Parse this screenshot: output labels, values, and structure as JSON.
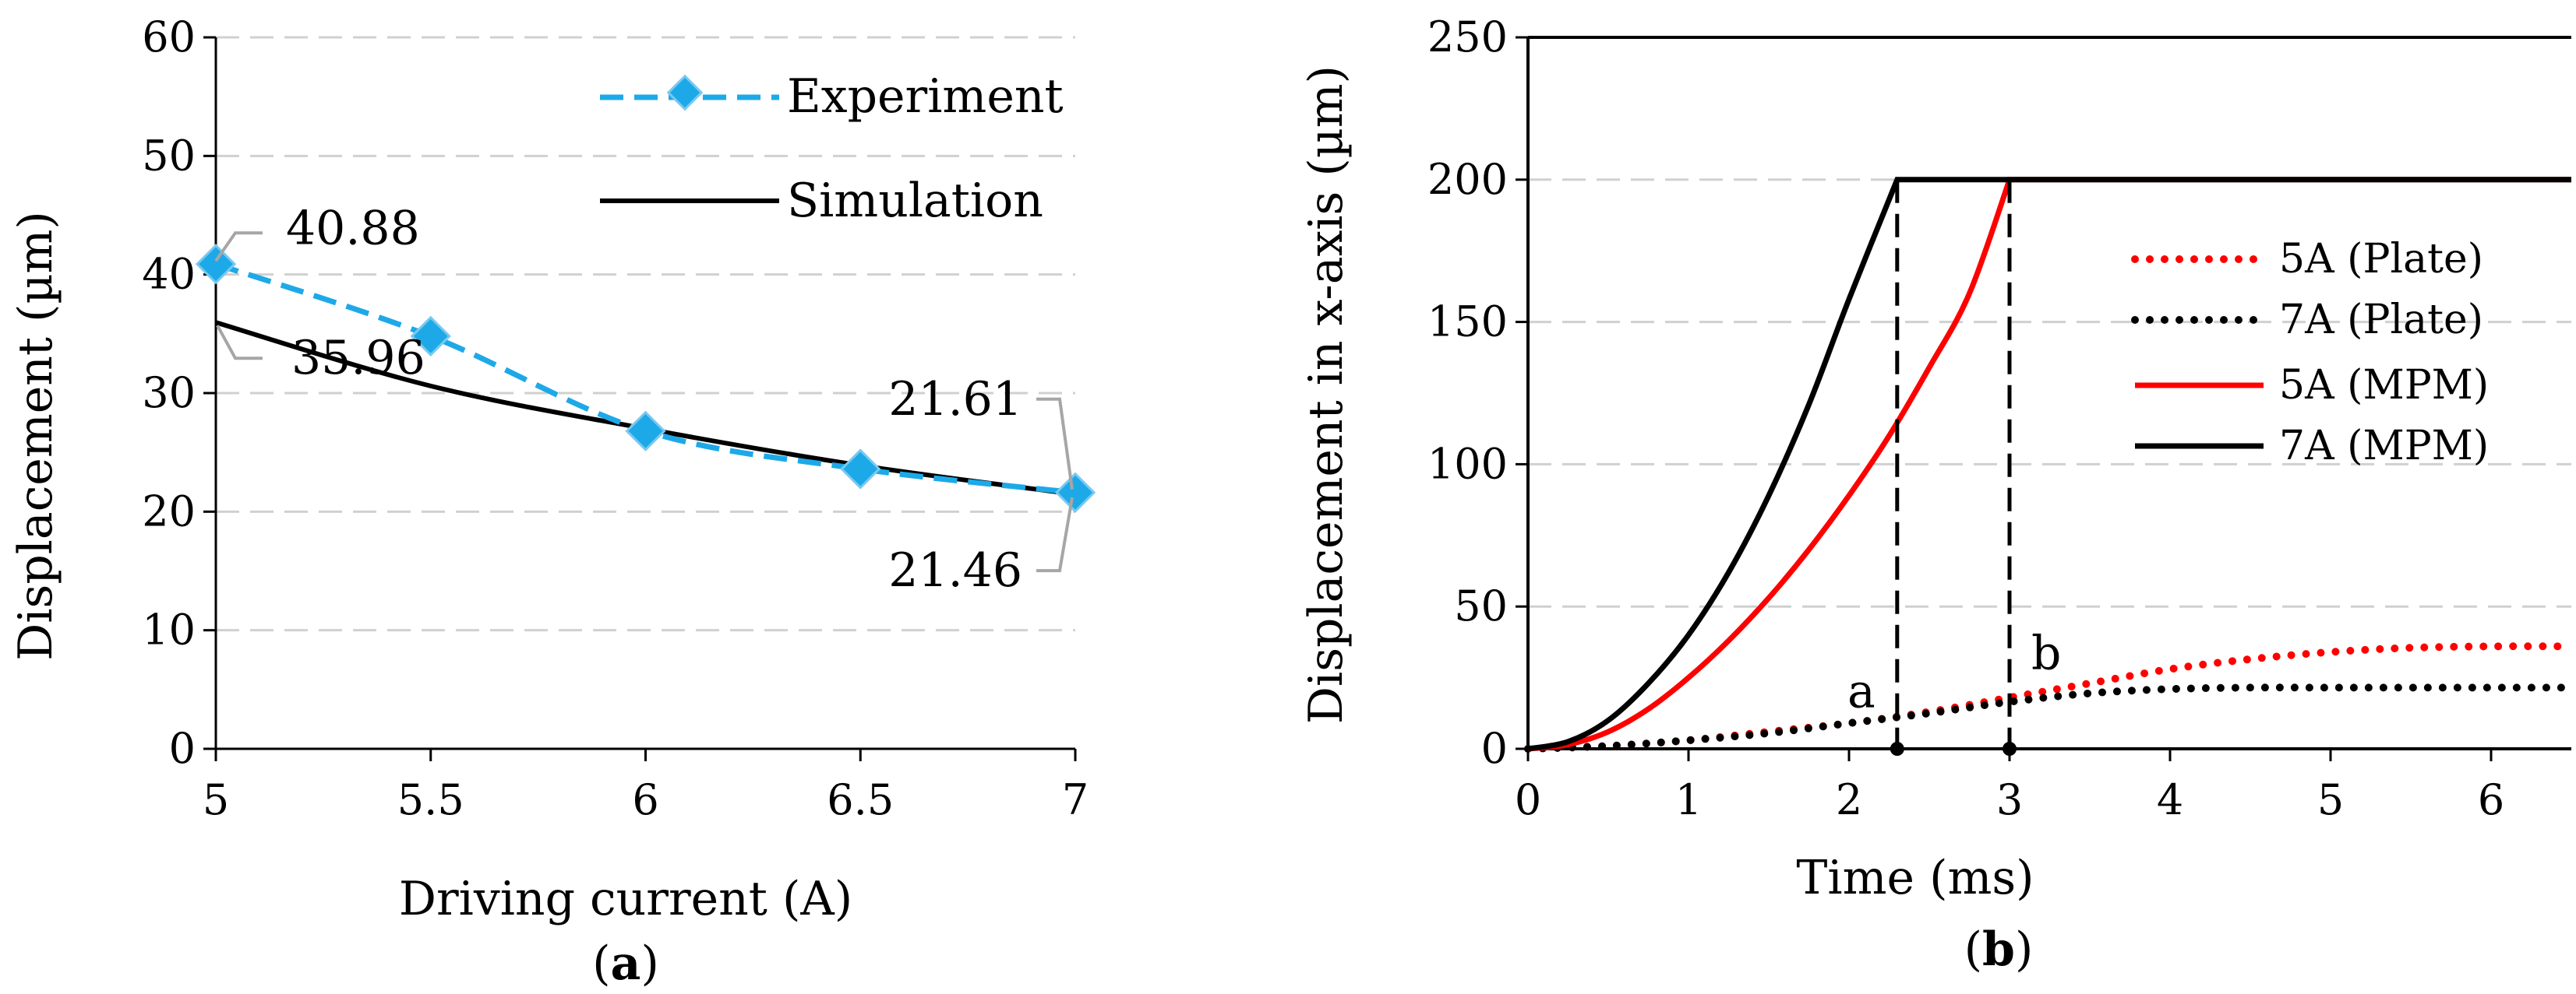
{
  "chart_data": [
    {
      "type": "line",
      "panel_label": {
        "open": "(",
        "letter": "a",
        "close": ")"
      },
      "xlabel": "Driving current (A)",
      "ylabel": "Displacement (µm)",
      "xlim": [
        5,
        7
      ],
      "ylim": [
        0,
        60
      ],
      "xticks": [
        "5",
        "5.5",
        "6",
        "6.5",
        "7"
      ],
      "yticks": [
        "0",
        "10",
        "20",
        "30",
        "40",
        "50",
        "60"
      ],
      "xtick_values": [
        5,
        5.5,
        6,
        6.5,
        7
      ],
      "ytick_values": [
        0,
        10,
        20,
        30,
        40,
        50,
        60
      ],
      "grid": "horizontal dashed",
      "legend_position": "top-right",
      "series": [
        {
          "name": "Experiment",
          "style": "dashed-with-diamonds",
          "color": "#1DA9E8",
          "marker_color": "#1DA9E8",
          "x": [
            5,
            5.5,
            6,
            6.5,
            7
          ],
          "y": [
            40.88,
            34.8,
            26.8,
            23.6,
            21.61
          ]
        },
        {
          "name": "Simulation",
          "style": "solid",
          "color": "#000000",
          "x": [
            5,
            5.5,
            6,
            6.5,
            7
          ],
          "y": [
            35.96,
            30.6,
            27.0,
            23.9,
            21.46
          ]
        }
      ],
      "annotations": [
        {
          "text": "40.88",
          "x": 5,
          "y": 40.88
        },
        {
          "text": "35.96",
          "x": 5,
          "y": 35.96
        },
        {
          "text": "21.61",
          "x": 7,
          "y": 21.61
        },
        {
          "text": "21.46",
          "x": 7,
          "y": 21.46
        }
      ]
    },
    {
      "type": "line",
      "panel_label": {
        "open": "(",
        "letter": "b",
        "close": ")"
      },
      "xlabel": "Time (ms)",
      "ylabel": "Displacement in x-axis (µm)",
      "xlim": [
        0,
        6.5
      ],
      "ylim": [
        0,
        250
      ],
      "xticks": [
        "0",
        "1",
        "2",
        "3",
        "4",
        "5",
        "6"
      ],
      "yticks": [
        "0",
        "50",
        "100",
        "150",
        "200",
        "250"
      ],
      "xtick_values": [
        0,
        1,
        2,
        3,
        4,
        5,
        6
      ],
      "ytick_values": [
        0,
        50,
        100,
        150,
        200,
        250
      ],
      "grid": "horizontal dashed",
      "legend_position": "right",
      "series": [
        {
          "name": "5A (Plate)",
          "style": "dotted",
          "color": "#FF0000",
          "x": [
            0,
            0.5,
            1,
            1.5,
            2,
            2.5,
            3,
            3.5,
            4,
            4.5,
            5,
            5.5,
            6,
            6.5
          ],
          "y": [
            0,
            1,
            3,
            6,
            9,
            13,
            18,
            23,
            28,
            31.5,
            34,
            35.5,
            36,
            36
          ]
        },
        {
          "name": "7A (Plate)",
          "style": "dotted",
          "color": "#000000",
          "x": [
            0,
            0.5,
            1,
            1.5,
            2,
            2.5,
            3,
            3.5,
            4,
            4.5,
            5,
            5.5,
            6,
            6.5
          ],
          "y": [
            0,
            1,
            3,
            5.5,
            9,
            12.5,
            16.5,
            19.5,
            21,
            21.5,
            21.5,
            21.5,
            21.5,
            21.5
          ]
        },
        {
          "name": "5A (MPM)",
          "style": "solid",
          "color": "#FF0000",
          "x": [
            0,
            0.25,
            0.5,
            0.75,
            1,
            1.25,
            1.5,
            1.75,
            2,
            2.25,
            2.5,
            2.75,
            3.0,
            6.5
          ],
          "y": [
            0,
            1.5,
            6,
            14,
            25,
            38,
            53,
            70,
            89,
            110,
            134,
            160,
            200,
            200
          ]
        },
        {
          "name": "7A (MPM)",
          "style": "solid",
          "color": "#000000",
          "x": [
            0,
            0.25,
            0.5,
            0.75,
            1,
            1.25,
            1.5,
            1.75,
            2,
            2.3,
            6.5
          ],
          "y": [
            0,
            2.5,
            10,
            23,
            40,
            62,
            89,
            121,
            158,
            200,
            200
          ]
        }
      ],
      "markers": [
        {
          "text": "a",
          "x": 2.3
        },
        {
          "text": "b",
          "x": 3.0
        }
      ]
    }
  ]
}
